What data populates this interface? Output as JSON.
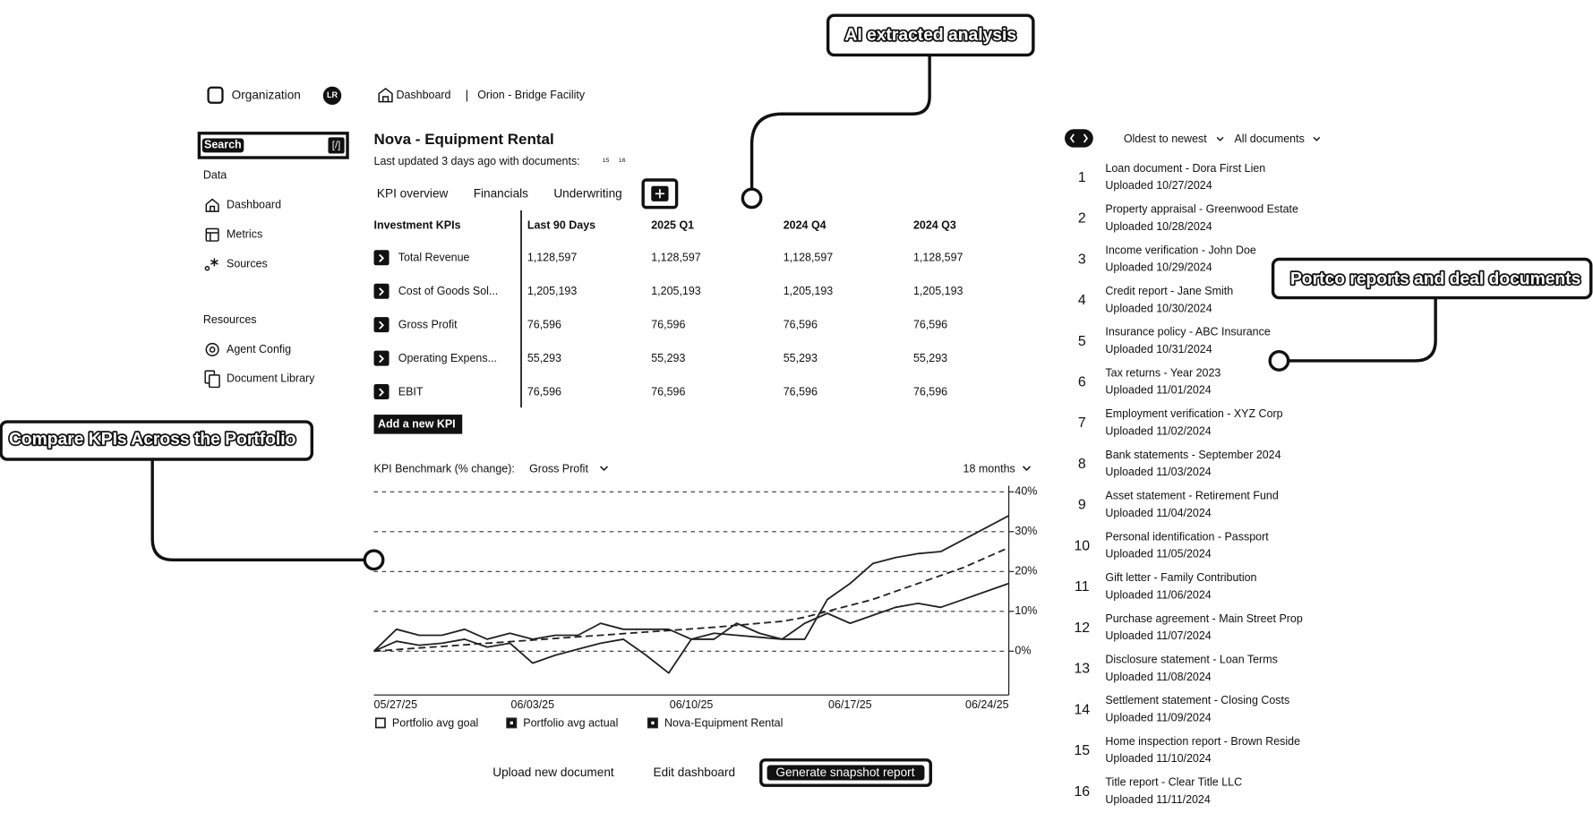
{
  "annotations": [
    "AI extracted analysis",
    "Portco reports and deal documents",
    "Compare KPIs Across the Portfolio"
  ],
  "sidebar": {
    "org": "Organization",
    "avatar": "LR",
    "search": "Search",
    "search_key": "[/]",
    "data_heading": "Data",
    "data_items": [
      "Dashboard",
      "Metrics",
      "Sources"
    ],
    "resources_heading": "Resources",
    "resources_items": [
      "Agent Config",
      "Document Library"
    ]
  },
  "breadcrumb": {
    "first": "Dashboard",
    "separator": "|",
    "current": "Orion - Bridge Facility"
  },
  "header": {
    "title": "Nova - Equipment Rental",
    "updated": "Last updated 3 days ago with documents:",
    "doc_refs": [
      "15",
      "16"
    ]
  },
  "tabs": [
    "KPI overview",
    "Financials",
    "Underwriting"
  ],
  "table": {
    "columns": [
      "Investment KPIs",
      "Last 90 Days",
      "2025 Q1",
      "2024 Q4",
      "2024 Q3"
    ],
    "rows": [
      [
        "Total Revenue",
        "1,128,597",
        "1,128,597",
        "1,128,597",
        "1,128,597"
      ],
      [
        "Cost of Goods Sol...",
        "1,205,193",
        "1,205,193",
        "1,205,193",
        "1,205,193"
      ],
      [
        "Gross Profit",
        "76,596",
        "76,596",
        "76,596",
        "76,596"
      ],
      [
        "Operating Expens...",
        "55,293",
        "55,293",
        "55,293",
        "55,293"
      ],
      [
        "EBIT",
        "76,596",
        "76,596",
        "76,596",
        "76,596"
      ]
    ],
    "add_button": "Add a new KPI"
  },
  "chart": {
    "type": "line",
    "label": "KPI Benchmark (% change):",
    "metric": "Gross Profit",
    "range": "18 months",
    "categories": [
      "05/27/25",
      null,
      null,
      null,
      null,
      null,
      null,
      "06/03/25",
      null,
      null,
      null,
      null,
      null,
      null,
      "06/10/25",
      null,
      null,
      null,
      null,
      null,
      null,
      "06/17/25",
      null,
      null,
      null,
      null,
      null,
      null,
      "06/24/25"
    ],
    "series": [
      {
        "name": "Portfolio avg goal",
        "color": "#222222",
        "line_style": "dashed",
        "values": [
          0,
          0.4,
          0.8,
          1.2,
          1.6,
          2,
          2.4,
          2.8,
          3.2,
          3.6,
          4,
          4.4,
          4.8,
          5.2,
          5.6,
          6,
          6.5,
          7,
          7.5,
          8.5,
          10,
          11.5,
          13,
          15,
          17,
          19,
          21,
          23.5,
          26
        ]
      },
      {
        "name": "Portfolio avg actual",
        "color": "#222222",
        "line_style": "solid",
        "values": [
          0,
          2.5,
          1.5,
          2,
          3,
          1,
          2,
          -3,
          -1,
          0.5,
          2,
          3,
          -1,
          -5.5,
          3,
          4.5,
          4,
          3.5,
          3,
          7,
          9.5,
          7,
          9,
          11,
          12,
          11,
          13,
          15,
          17
        ]
      },
      {
        "name": "Nova-Equipment Rental",
        "color": "#222222",
        "line_style": "solid",
        "values": [
          0,
          5.5,
          4,
          4,
          5.5,
          3,
          4.5,
          3,
          4,
          4,
          7,
          5.5,
          5.5,
          5.5,
          3,
          3,
          7,
          4.5,
          3,
          3,
          13,
          17,
          22,
          23.5,
          24.5,
          25,
          28,
          31,
          34
        ]
      }
    ],
    "ylim": [
      -11,
      40
    ],
    "yticks": [
      {
        "value": 0,
        "label": "0%"
      },
      {
        "value": 10,
        "label": "10%"
      },
      {
        "value": 20,
        "label": "20%"
      },
      {
        "value": 30,
        "label": "30%"
      },
      {
        "value": 40,
        "label": "40%"
      }
    ],
    "grid": true
  },
  "actions": [
    "Upload new document",
    "Edit dashboard",
    "Generate snapshot report"
  ],
  "documents": {
    "sort": "Oldest to newest",
    "filter": "All documents",
    "items": [
      {
        "number": "1",
        "title": "Loan document - Dora First Lien",
        "uploaded": "Uploaded 10/27/2024"
      },
      {
        "number": "2",
        "title": "Property appraisal - Greenwood Estate",
        "uploaded": "Uploaded 10/28/2024"
      },
      {
        "number": "3",
        "title": "Income verification - John Doe",
        "uploaded": "Uploaded 10/29/2024"
      },
      {
        "number": "4",
        "title": "Credit report - Jane Smith",
        "uploaded": "Uploaded 10/30/2024"
      },
      {
        "number": "5",
        "title": "Insurance policy - ABC Insurance",
        "uploaded": "Uploaded 10/31/2024"
      },
      {
        "number": "6",
        "title": "Tax returns - Year 2023",
        "uploaded": "Uploaded 11/01/2024"
      },
      {
        "number": "7",
        "title": "Employment verification - XYZ Corp",
        "uploaded": "Uploaded 11/02/2024"
      },
      {
        "number": "8",
        "title": "Bank statements - September 2024",
        "uploaded": "Uploaded 11/03/2024"
      },
      {
        "number": "9",
        "title": "Asset statement - Retirement Fund",
        "uploaded": "Uploaded 11/04/2024"
      },
      {
        "number": "10",
        "title": "Personal identification - Passport",
        "uploaded": "Uploaded 11/05/2024"
      },
      {
        "number": "11",
        "title": "Gift letter - Family Contribution",
        "uploaded": "Uploaded 11/06/2024"
      },
      {
        "number": "12",
        "title": "Purchase agreement - Main Street Prop",
        "uploaded": "Uploaded 11/07/2024"
      },
      {
        "number": "13",
        "title": "Disclosure statement - Loan Terms",
        "uploaded": "Uploaded 11/08/2024"
      },
      {
        "number": "14",
        "title": "Settlement statement - Closing Costs",
        "uploaded": "Uploaded 11/09/2024"
      },
      {
        "number": "15",
        "title": "Home inspection report - Brown Reside",
        "uploaded": "Uploaded 11/10/2024"
      },
      {
        "number": "16",
        "title": "Title report - Clear Title LLC",
        "uploaded": "Uploaded 11/11/2024"
      }
    ]
  }
}
